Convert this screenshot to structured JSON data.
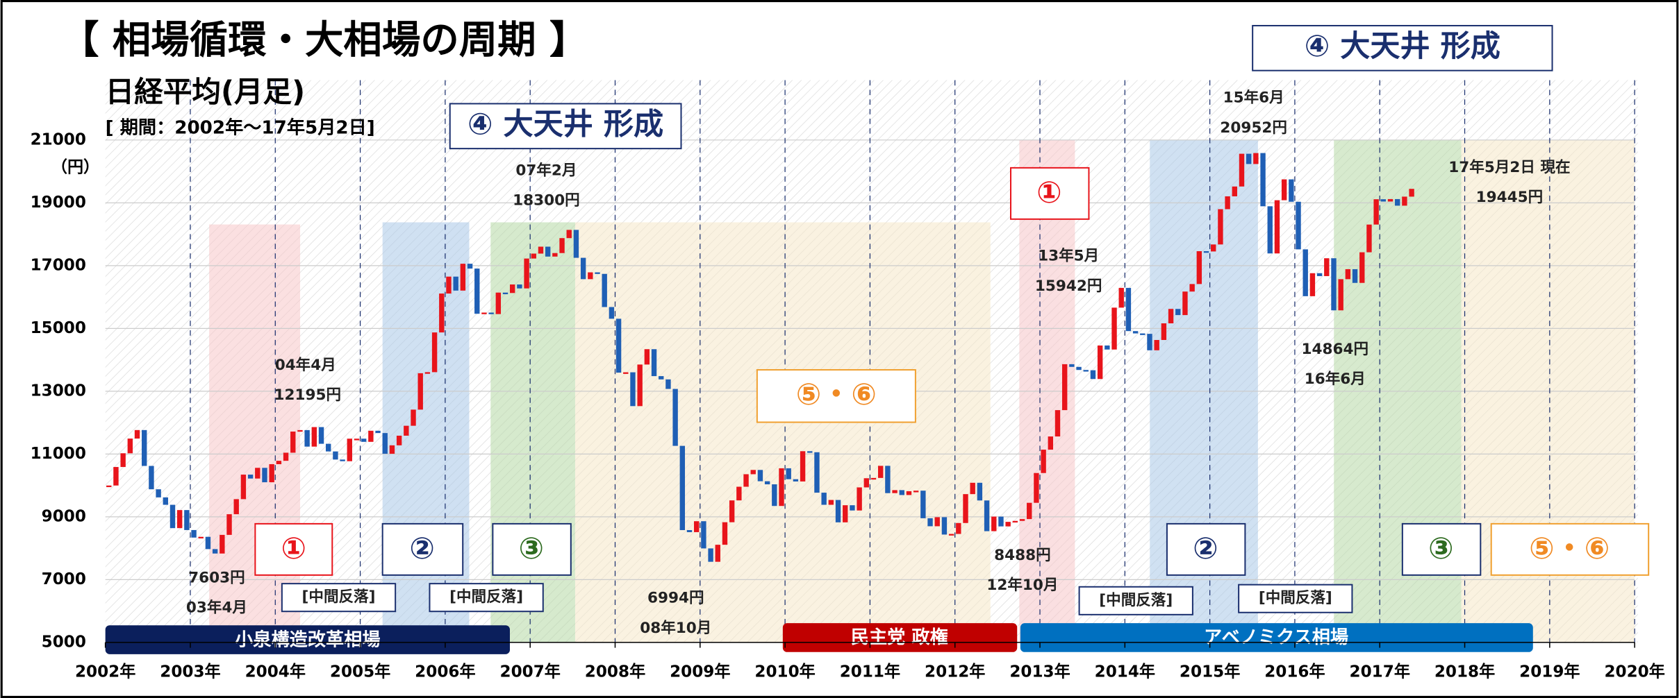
{
  "chart_data": {
    "type": "candlestick",
    "title": "【 相場循環・大相場の周期 】",
    "subtitle": "日経平均(月足)",
    "period": "[ 期間：2002年～17年5月2日]",
    "y_unit": "（円）",
    "xlim": [
      2002,
      2020
    ],
    "xticks": [
      {
        "value": 2002,
        "label": "2002年"
      },
      {
        "value": 2003,
        "label": "2003年"
      },
      {
        "value": 2004,
        "label": "2004年"
      },
      {
        "value": 2005,
        "label": "2005年"
      },
      {
        "value": 2006,
        "label": "2006年"
      },
      {
        "value": 2007,
        "label": "2007年"
      },
      {
        "value": 2008,
        "label": "2008年"
      },
      {
        "value": 2009,
        "label": "2009年"
      },
      {
        "value": 2010,
        "label": "2010年"
      },
      {
        "value": 2011,
        "label": "2011年"
      },
      {
        "value": 2012,
        "label": "2012年"
      },
      {
        "value": 2013,
        "label": "2013年"
      },
      {
        "value": 2014,
        "label": "2014年"
      },
      {
        "value": 2015,
        "label": "2015年"
      },
      {
        "value": 2016,
        "label": "2016年"
      },
      {
        "value": 2017,
        "label": "2017年"
      },
      {
        "value": 2018,
        "label": "2018年"
      },
      {
        "value": 2019,
        "label": "2019年"
      },
      {
        "value": 2020,
        "label": "2020年"
      }
    ],
    "ylim": [
      5000,
      21000
    ],
    "yticks": [
      5000,
      7000,
      9000,
      11000,
      13000,
      15000,
      17000,
      19000,
      21000
    ],
    "up_color": "#e8141b",
    "down_color": "#1f5fb5",
    "monthly_close": [
      9997,
      10587,
      11024,
      11492,
      11763,
      10621,
      9877,
      9619,
      9383,
      8640,
      9215,
      8579,
      8339,
      8363,
      7972,
      7831,
      8425,
      9083,
      9563,
      10344,
      10219,
      10560,
      10101,
      10677,
      10784,
      11042,
      11715,
      11762,
      11236,
      11858,
      11326,
      11082,
      10824,
      10771,
      11489,
      11489,
      11388,
      11741,
      11668,
      11009,
      11277,
      11584,
      11900,
      12414,
      13574,
      13607,
      14872,
      16111,
      16650,
      16205,
      17060,
      16906,
      15467,
      15505,
      15457,
      16141,
      16128,
      16400,
      16274,
      17226,
      17383,
      17604,
      17288,
      17400,
      17876,
      18138,
      17249,
      16569,
      16786,
      16737,
      15681,
      15308,
      13592,
      13603,
      12526,
      13850,
      14339,
      13481,
      13377,
      13073,
      11260,
      8577,
      8512,
      8860,
      7994,
      7568,
      8110,
      8828,
      9523,
      9958,
      10357,
      10493,
      10133,
      10035,
      9346,
      10546,
      10198,
      10126,
      11090,
      11057,
      9769,
      9383,
      9537,
      8824,
      9369,
      9202,
      9937,
      10229,
      10238,
      10624,
      9755,
      9850,
      9694,
      9816,
      9833,
      8955,
      8700,
      8988,
      8435,
      8455,
      8803,
      9723,
      10084,
      9521,
      8543,
      9007,
      8695,
      8840,
      8870,
      8928,
      9446,
      10395,
      11139,
      11559,
      12398,
      13861,
      13775,
      13677,
      13668,
      13389,
      14456,
      14328,
      15662,
      16291,
      14915,
      14841,
      14828,
      14304,
      14632,
      15162,
      15621,
      15425,
      16174,
      16414,
      17460,
      17451,
      17674,
      18798,
      19207,
      19520,
      20563,
      20236,
      20585,
      18890,
      17388,
      19083,
      19747,
      19034,
      17518,
      16027,
      16759,
      16666,
      17235,
      15576,
      16569,
      16887,
      16450,
      17425,
      18308,
      19114,
      19041,
      19119,
      18909,
      19197,
      19445
    ],
    "phases": {
      "p4": "④ 大天井 形成",
      "p1": "①",
      "p2": "②",
      "p3": "③",
      "p56": "⑤・⑥"
    },
    "rebound": "[中間反落]",
    "eras": [
      "小泉構造改革相場",
      "民主党 政権",
      "アベノミクス相場"
    ],
    "annotations": [
      "04年4月",
      "12195円",
      "7603円",
      "03年4月",
      "07年2月",
      "18300円",
      "6994円",
      "08年10月",
      "8488円",
      "12年10月",
      "13年5月",
      "15942円",
      "15年6月",
      "20952円",
      "14864円",
      "16年6月",
      "17年5月2日 現在",
      "19445円"
    ]
  }
}
